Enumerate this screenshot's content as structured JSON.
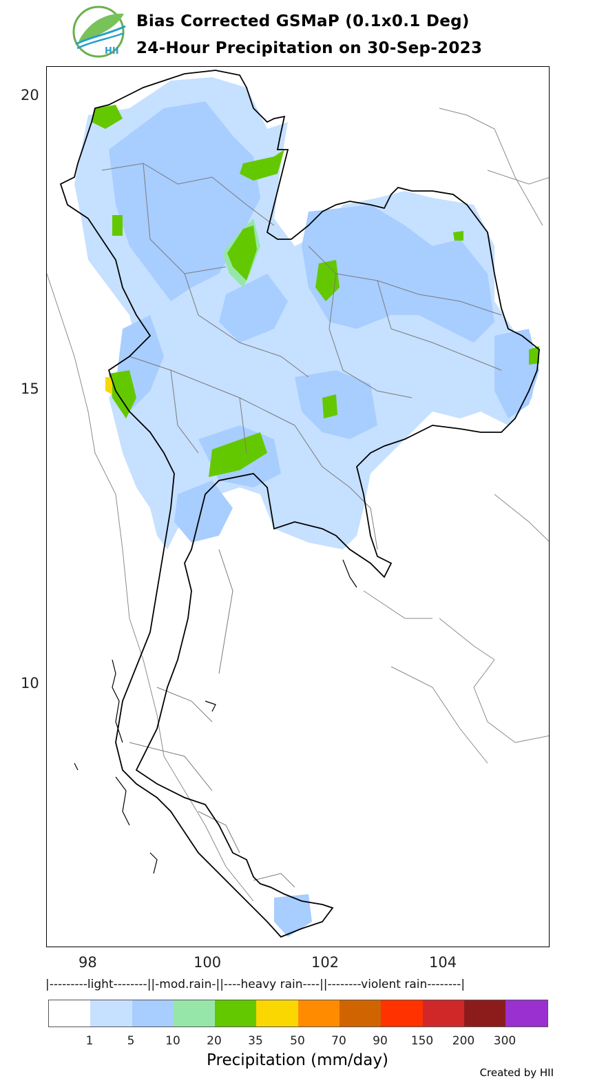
{
  "header": {
    "logo_text": "HII",
    "title_line1": "Bias Corrected GSMaP (0.1x0.1 Deg)",
    "title_line2": "24-Hour Precipitation on 30-Sep-2023"
  },
  "axes": {
    "y_ticks": [
      "20",
      "15",
      "10"
    ],
    "x_ticks": [
      "98",
      "100",
      "102",
      "104"
    ]
  },
  "legend": {
    "categories_line": "|---------light--------||-mod.rain-||----heavy rain----||--------violent rain--------|",
    "colors": [
      "#ffffff",
      "#c6e0ff",
      "#a8cdff",
      "#96e6aa",
      "#64c800",
      "#fad700",
      "#ff8c00",
      "#d06400",
      "#ff3200",
      "#d02828",
      "#8c1c1c",
      "#9b30d0"
    ],
    "tick_labels": [
      "1",
      "5",
      "10",
      "20",
      "35",
      "50",
      "70",
      "90",
      "150",
      "200",
      "300"
    ],
    "label": "Precipitation (mm/day)"
  },
  "footer": {
    "credit": "Created by HII"
  }
}
